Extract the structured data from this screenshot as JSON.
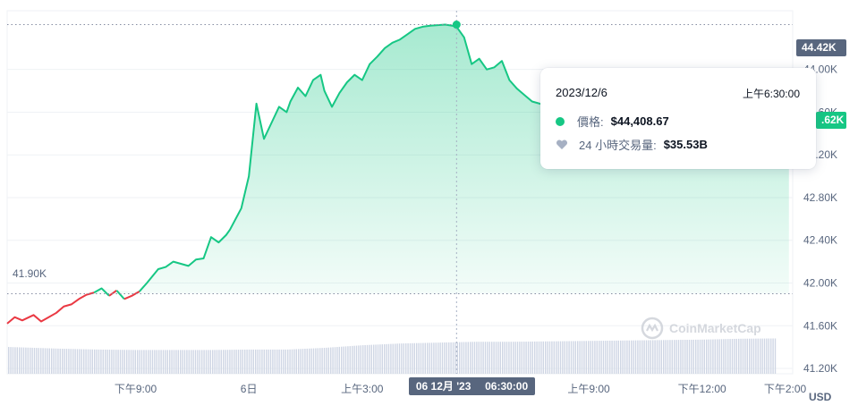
{
  "chart_data": {
    "type": "area",
    "currency_label": "USD",
    "y_ticks": [
      "41.20K",
      "41.60K",
      "42.00K",
      "42.40K",
      "42.80K",
      "43.20K",
      "43.60K",
      "44.00K"
    ],
    "y_ticks_values": [
      41200,
      41600,
      42000,
      42400,
      42800,
      43200,
      43600,
      44000
    ],
    "ylim": [
      41150,
      44550
    ],
    "x_ticks": [
      "下午9:00",
      "6日",
      "上午3:00",
      "上午9:00",
      "下午12:00",
      "下午2:00"
    ],
    "x_ticks_hours": [
      3,
      6,
      9,
      15,
      18,
      20.2
    ],
    "xlim": [
      -0.4,
      20.4
    ],
    "open_price": 41900,
    "open_label": "41.90K",
    "high_price": 44420,
    "high_label": "44.42K",
    "current_label": ".62K",
    "current_price": 43620,
    "cursor_hours": 11.5,
    "x_cursor_label_date": "06 12月 '23",
    "x_cursor_label_time": "06:30:00",
    "price_series": {
      "x": [
        -0.4,
        -0.2,
        0.0,
        0.3,
        0.5,
        0.7,
        0.9,
        1.1,
        1.3,
        1.5,
        1.7,
        1.9,
        2.1,
        2.3,
        2.5,
        2.7,
        2.9,
        3.1,
        3.3,
        3.6,
        3.8,
        4.0,
        4.2,
        4.4,
        4.6,
        4.8,
        5.0,
        5.2,
        5.4,
        5.5,
        5.8,
        6.0,
        6.2,
        6.4,
        6.6,
        6.8,
        7.0,
        7.1,
        7.3,
        7.5,
        7.7,
        7.9,
        8.0,
        8.2,
        8.4,
        8.6,
        8.8,
        9.0,
        9.2,
        9.4,
        9.6,
        9.8,
        10.0,
        10.2,
        10.4,
        10.6,
        10.8,
        11.0,
        11.2,
        11.4,
        11.5,
        11.7,
        11.9,
        12.1,
        12.3,
        12.5,
        12.7,
        12.9,
        13.1,
        13.3,
        13.5,
        13.7,
        13.9,
        14.1,
        14.3,
        14.5,
        14.7,
        14.9,
        15.1,
        15.3,
        15.5,
        15.7,
        15.9,
        16.1,
        16.3,
        16.5,
        16.7,
        16.9,
        17.1,
        17.3,
        17.5,
        17.7,
        17.9,
        18.1,
        18.3,
        18.5,
        18.7,
        18.9,
        19.1,
        19.3,
        19.5,
        19.7,
        19.9,
        20.1,
        20.3
      ],
      "y": [
        41620,
        41680,
        41650,
        41700,
        41640,
        41680,
        41720,
        41780,
        41800,
        41850,
        41890,
        41910,
        41950,
        41880,
        41930,
        41850,
        41880,
        41920,
        42000,
        42130,
        42150,
        42200,
        42180,
        42160,
        42220,
        42230,
        42430,
        42380,
        42450,
        42500,
        42700,
        43000,
        43680,
        43350,
        43500,
        43650,
        43600,
        43700,
        43830,
        43750,
        43900,
        43950,
        43800,
        43650,
        43780,
        43880,
        43950,
        43900,
        44050,
        44120,
        44200,
        44250,
        44280,
        44330,
        44380,
        44400,
        44410,
        44415,
        44420,
        44408.67,
        44400,
        44300,
        44050,
        44100,
        44000,
        44020,
        44080,
        43900,
        43820,
        43760,
        43700,
        43680,
        43650,
        43700,
        43680,
        43650,
        43640,
        43650,
        43630,
        43640,
        43650,
        43640,
        43630,
        43640,
        43660,
        43650,
        43640,
        43640,
        43630,
        43620,
        43610,
        43620,
        43640,
        43650,
        43630,
        43620,
        43610,
        43630,
        43640,
        43620,
        43610,
        43620,
        43630,
        43620,
        43620
      ]
    },
    "volume_series": {
      "x": [
        -0.4,
        1.0,
        2.0,
        3.0,
        4.0,
        5.0,
        6.0,
        7.0,
        8.0,
        9.0,
        10.0,
        11.0,
        12.0,
        13.0,
        14.0,
        15.0,
        16.0,
        17.0,
        18.0,
        19.0,
        20.3
      ],
      "y_relative": [
        0.62,
        0.58,
        0.56,
        0.55,
        0.55,
        0.55,
        0.56,
        0.56,
        0.6,
        0.66,
        0.7,
        0.72,
        0.74,
        0.74,
        0.75,
        0.76,
        0.77,
        0.78,
        0.79,
        0.81,
        0.82
      ]
    }
  },
  "tooltip": {
    "date": "2023/12/6",
    "time": "上午6:30:00",
    "price_label": "價格:",
    "price_value": "$44,408.67",
    "volume_label": "24 小時交易量:",
    "volume_value": "$35.53B"
  },
  "watermark_text": "CoinMarketCap",
  "colors": {
    "up": "#16c784",
    "down": "#ea3943",
    "grid": "#eff2f5",
    "axis_text": "#58667e",
    "tag_bg": "#58667e",
    "volume": "#cfd6e4"
  }
}
